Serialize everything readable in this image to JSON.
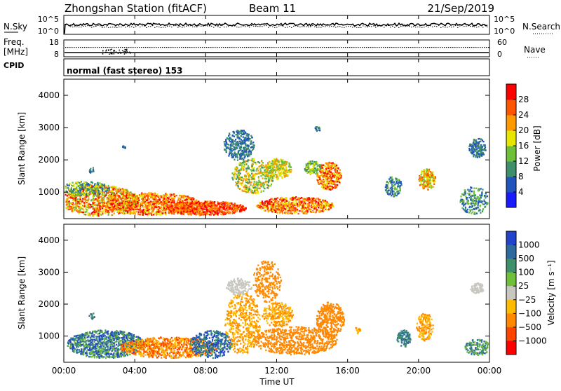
{
  "header": {
    "station": "Zhongshan Station (fitACF)",
    "beam": "Beam 11",
    "date": "21/Sep/2019"
  },
  "top_panel": {
    "left_label": "N.Sky",
    "left_ticks": [
      "10^5",
      "10^0"
    ],
    "right_ticks": [
      "10^5",
      "10^0"
    ],
    "right_label": "N.Search"
  },
  "freq_panel": {
    "left_label_1": "Freq.",
    "left_label_2": "[MHz]",
    "left_ticks": [
      "18",
      "8"
    ],
    "right_ticks": [
      "60",
      "0"
    ],
    "right_label": "Nave"
  },
  "cpid": {
    "label": "CPID",
    "mode": "normal (fast stereo) 153"
  },
  "chart_data": [
    {
      "type": "heatmap",
      "name": "power",
      "ylabel": "Slant Range [km]",
      "ylim": [
        180,
        4500
      ],
      "yticks": [
        1000,
        2000,
        3000,
        4000
      ],
      "colorbar_label": "Power [dB]",
      "colorbar_ticks": [
        "4",
        "8",
        "12",
        "16",
        "20",
        "24",
        "28"
      ],
      "colorbar_colors": [
        "#1a1aff",
        "#2255bb",
        "#3e8f6a",
        "#6fbf3a",
        "#e6e600",
        "#ff9900",
        "#ff5500",
        "#ff0000"
      ]
    },
    {
      "type": "heatmap",
      "name": "velocity",
      "ylabel": "Slant Range [km]",
      "ylim": [
        180,
        4500
      ],
      "yticks": [
        1000,
        2000,
        3000,
        4000
      ],
      "colorbar_label": "Velocity [m s⁻¹]",
      "colorbar_ticks": [
        "1000",
        "500",
        "100",
        "25",
        "−25",
        "−100",
        "−500",
        "−1000"
      ],
      "colorbar_colors": [
        "#2244cc",
        "#2e6aa0",
        "#3e8f6a",
        "#6fbf3a",
        "#c8c8c0",
        "#ffbb00",
        "#ff8800",
        "#ff4400",
        "#ff0000"
      ]
    }
  ],
  "xaxis": {
    "label": "Time UT",
    "ticks": [
      "00:00",
      "04:00",
      "08:00",
      "12:00",
      "16:00",
      "20:00",
      "00:00"
    ]
  }
}
